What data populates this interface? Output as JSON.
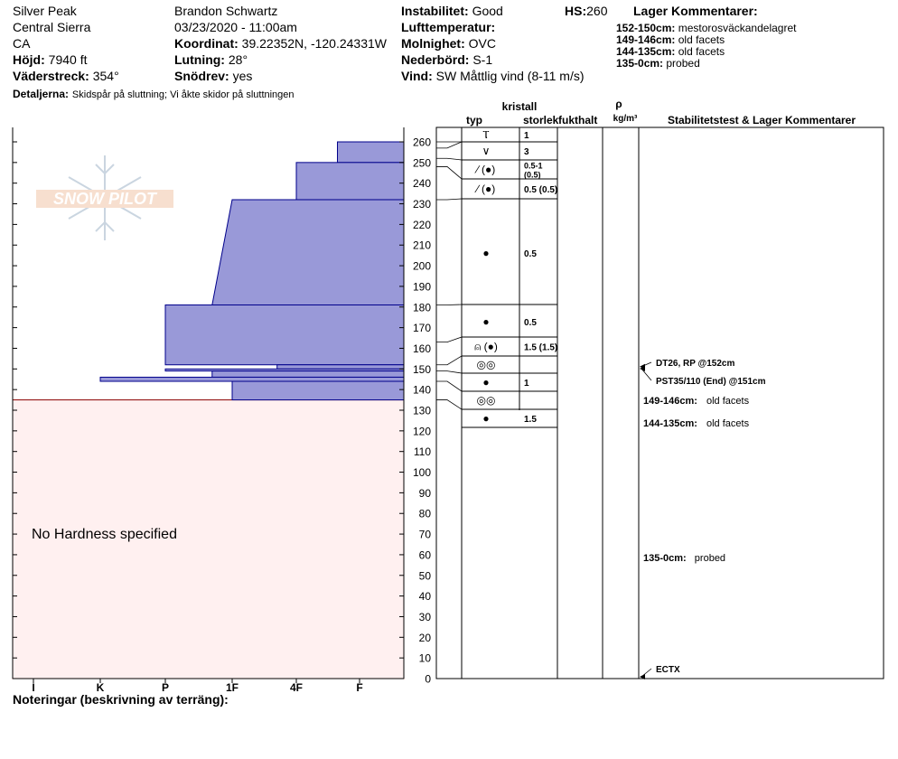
{
  "header": {
    "col1": {
      "location": "Silver Peak",
      "region": "Central Sierra",
      "state": "CA",
      "elevation_label": "Höjd:",
      "elevation": "7940 ft",
      "aspect_label": "Väderstreck:",
      "aspect": "354°"
    },
    "col2": {
      "observer": "Brandon Schwartz",
      "datetime": "03/23/2020 - 11:00am",
      "coord_label": "Koordinat:",
      "coord": "39.22352N, -120.24331W",
      "slope_label": "Lutning:",
      "slope": "28°",
      "drift_label": "Snödrev:",
      "drift": "yes"
    },
    "col3": {
      "instability_label": "Instabilitet:",
      "instability": "Good",
      "airtemp_label": "Lufttemperatur:",
      "sky_label": "Molnighet:",
      "sky": "OVC",
      "precip_label": "Nederbörd:",
      "precip": "S-1",
      "wind_label": "Vind:",
      "wind": "SW  Måttlig vind (8-11 m/s)"
    },
    "hs_label": "HS:",
    "hs": "260",
    "details_label": "Detaljerna:",
    "details": "Skidspår på sluttning;  Vi åkte skidor på sluttningen"
  },
  "layer_comments_box": {
    "title": "Lager Kommentarer:",
    "items": [
      {
        "range": "152-150cm:",
        "text": "mestorosväckandelagret"
      },
      {
        "range": "149-146cm:",
        "text": "old facets"
      },
      {
        "range": "144-135cm:",
        "text": "old facets"
      },
      {
        "range": "135-0cm:",
        "text": "probed"
      }
    ]
  },
  "logo_text": "SNOW PILOT",
  "footer_notes_label": "Noteringar (beskrivning av terräng):",
  "colors": {
    "hardness_fill": "#9999d8",
    "hardness_stroke": "#00008b",
    "unspecified_fill": "#fff0f0",
    "unspecified_stroke": "#8b0000"
  },
  "chart_data": {
    "type": "snow-profile",
    "y_axis": {
      "min": 0,
      "max": 260,
      "step": 10,
      "label_pos": "left"
    },
    "hardness_ticks": [
      "I",
      "K",
      "P",
      "1F",
      "4F",
      "F"
    ],
    "hardness_layers": [
      {
        "top": 260,
        "bottom": 250,
        "left_index": 4.65
      },
      {
        "top": 250,
        "bottom": 232,
        "left_index": 4.0
      },
      {
        "top": 232,
        "bottom": 181,
        "left_index_top": 3.0,
        "left_index_bottom": 2.7
      },
      {
        "top": 181,
        "bottom": 152,
        "left_index": 2.0
      },
      {
        "top": 152,
        "bottom": 150,
        "left_index": 3.7
      },
      {
        "top": 150,
        "bottom": 149,
        "left_index": 2.0
      },
      {
        "top": 149,
        "bottom": 146,
        "left_index": 2.7
      },
      {
        "top": 146,
        "bottom": 144,
        "left_index": 1.0
      },
      {
        "top": 144,
        "bottom": 135,
        "left_index": 3.0
      }
    ],
    "no_hardness": {
      "top": 135,
      "bottom": 0,
      "label": "No Hardness specified"
    },
    "columns": {
      "crystal_label": "kristall",
      "type": "typ",
      "size": "storlek",
      "moisture": "fukthalt",
      "rho": "ρ",
      "density_unit": "kg/m³",
      "tests": "Stabilitetstest & Lager Kommentarer"
    },
    "layer_rows": [
      {
        "top": 260,
        "bottom": 257,
        "grain": "Ⲧ",
        "size": "1"
      },
      {
        "top": 257,
        "bottom": 252,
        "grain": "∨",
        "size": "3"
      },
      {
        "top": 252,
        "bottom": 248,
        "grain": "∕ (●)",
        "size": "0.5-1 (0.5)"
      },
      {
        "top": 248,
        "bottom": 232,
        "grain": "∕ (●)",
        "size": "0.5 (0.5)"
      },
      {
        "top": 232,
        "bottom": 181,
        "grain": "●",
        "size": "0.5"
      },
      {
        "top": 181,
        "bottom": 163,
        "grain": "●",
        "size": "0.5"
      },
      {
        "top": 163,
        "bottom": 152,
        "grain": "⍝ (●)",
        "size": "1.5 (1.5)"
      },
      {
        "top": 152,
        "bottom": 149,
        "grain": "◎◎",
        "size": ""
      },
      {
        "top": 149,
        "bottom": 144,
        "grain": "●",
        "size": "1"
      },
      {
        "top": 144,
        "bottom": 135,
        "grain": "◎◎",
        "size": ""
      },
      {
        "top": 135,
        "bottom": 130,
        "grain": "●",
        "size": "1.5"
      }
    ],
    "test_results": [
      {
        "depth": 152,
        "text": "DT26, RP @152cm"
      },
      {
        "depth": 151,
        "text": "PST35/110 (End) @151cm"
      },
      {
        "depth": 0,
        "text": "ECTX"
      }
    ],
    "side_comments": [
      {
        "range": "149-146cm:",
        "text": "old facets"
      },
      {
        "range": "144-135cm:",
        "text": "old facets"
      },
      {
        "range": "135-0cm:",
        "text": "probed"
      }
    ]
  }
}
